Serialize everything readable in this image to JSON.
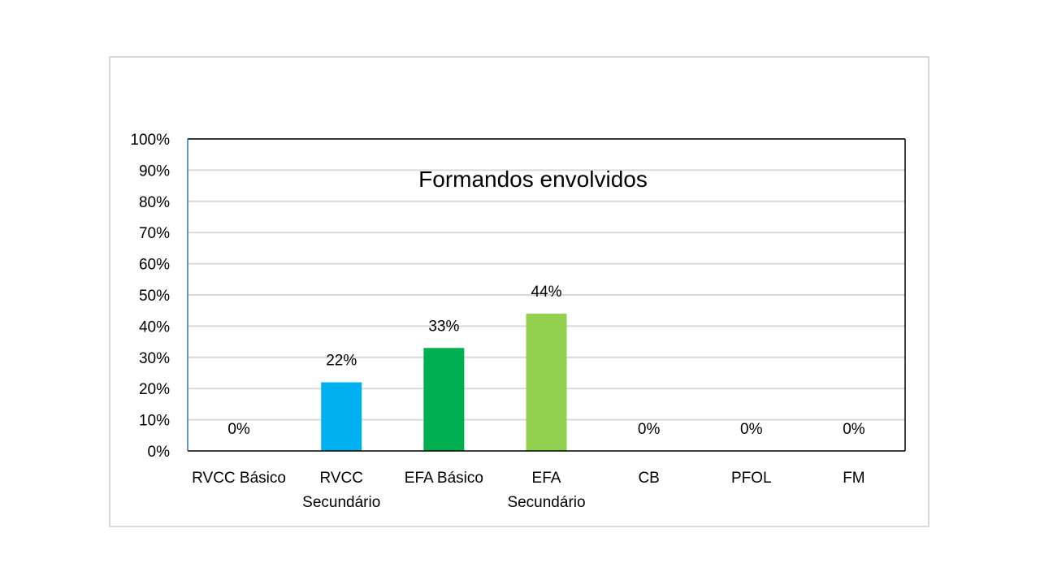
{
  "chart_data": {
    "type": "bar",
    "title": "Formandos envolvidos",
    "categories": [
      [
        "RVCC Básico"
      ],
      [
        "RVCC",
        "Secundário"
      ],
      [
        "EFA Básico"
      ],
      [
        "EFA",
        "Secundário"
      ],
      [
        "CB"
      ],
      [
        "PFOL"
      ],
      [
        "FM"
      ]
    ],
    "values": [
      0,
      22,
      33,
      44,
      0,
      0,
      0
    ],
    "data_labels": [
      "0%",
      "22%",
      "33%",
      "44%",
      "0%",
      "0%",
      "0%"
    ],
    "bar_colors": [
      "#00b0f0",
      "#00b0f0",
      "#00b050",
      "#92d050",
      "#00b0f0",
      "#00b0f0",
      "#00b0f0"
    ],
    "ylim": [
      0,
      100
    ],
    "yticks": [
      0,
      10,
      20,
      30,
      40,
      50,
      60,
      70,
      80,
      90,
      100
    ],
    "ytick_labels": [
      "0%",
      "10%",
      "20%",
      "30%",
      "40%",
      "50%",
      "60%",
      "70%",
      "80%",
      "90%",
      "100%"
    ],
    "grid": true,
    "gridline_color": "#d9d9d9",
    "axis_color": "#000000",
    "left_axis_color": "#2e75b6"
  }
}
